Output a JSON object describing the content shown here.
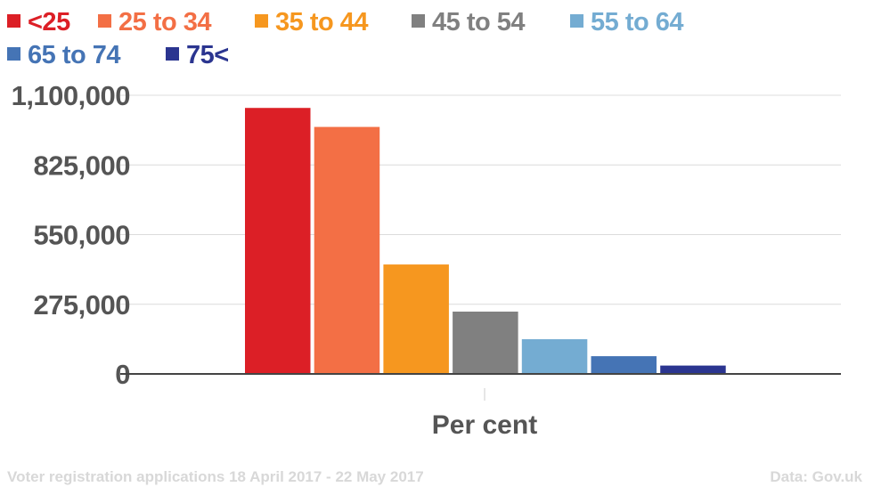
{
  "chart_data": {
    "type": "bar",
    "title": "",
    "xlabel": "Per cent",
    "ylabel": "",
    "categories": [
      "Per cent"
    ],
    "ylim": [
      0,
      1100000
    ],
    "yticks": [
      0,
      275000,
      550000,
      825000,
      1100000
    ],
    "ytick_labels": [
      "0",
      "275,000",
      "550,000",
      "825,000",
      "1,100,000"
    ],
    "grid": true,
    "legend_position": "top-left",
    "series": [
      {
        "name": "<25",
        "values": [
          1050000
        ],
        "color": "#dc1f26"
      },
      {
        "name": "25 to 34",
        "values": [
          975000
        ],
        "color": "#f36f45"
      },
      {
        "name": "35 to 44",
        "values": [
          432000
        ],
        "color": "#f6971f"
      },
      {
        "name": "45 to 54",
        "values": [
          246000
        ],
        "color": "#808080"
      },
      {
        "name": "55 to 64",
        "values": [
          137000
        ],
        "color": "#74acd2"
      },
      {
        "name": "65 to 74",
        "values": [
          70000
        ],
        "color": "#4574b5"
      },
      {
        "name": "75<",
        "values": [
          33000
        ],
        "color": "#2b3590"
      }
    ]
  },
  "footer": {
    "source_note": "Voter registration applications 18 April 2017 - 22 May 2017",
    "credit": "Data: Gov.uk"
  }
}
